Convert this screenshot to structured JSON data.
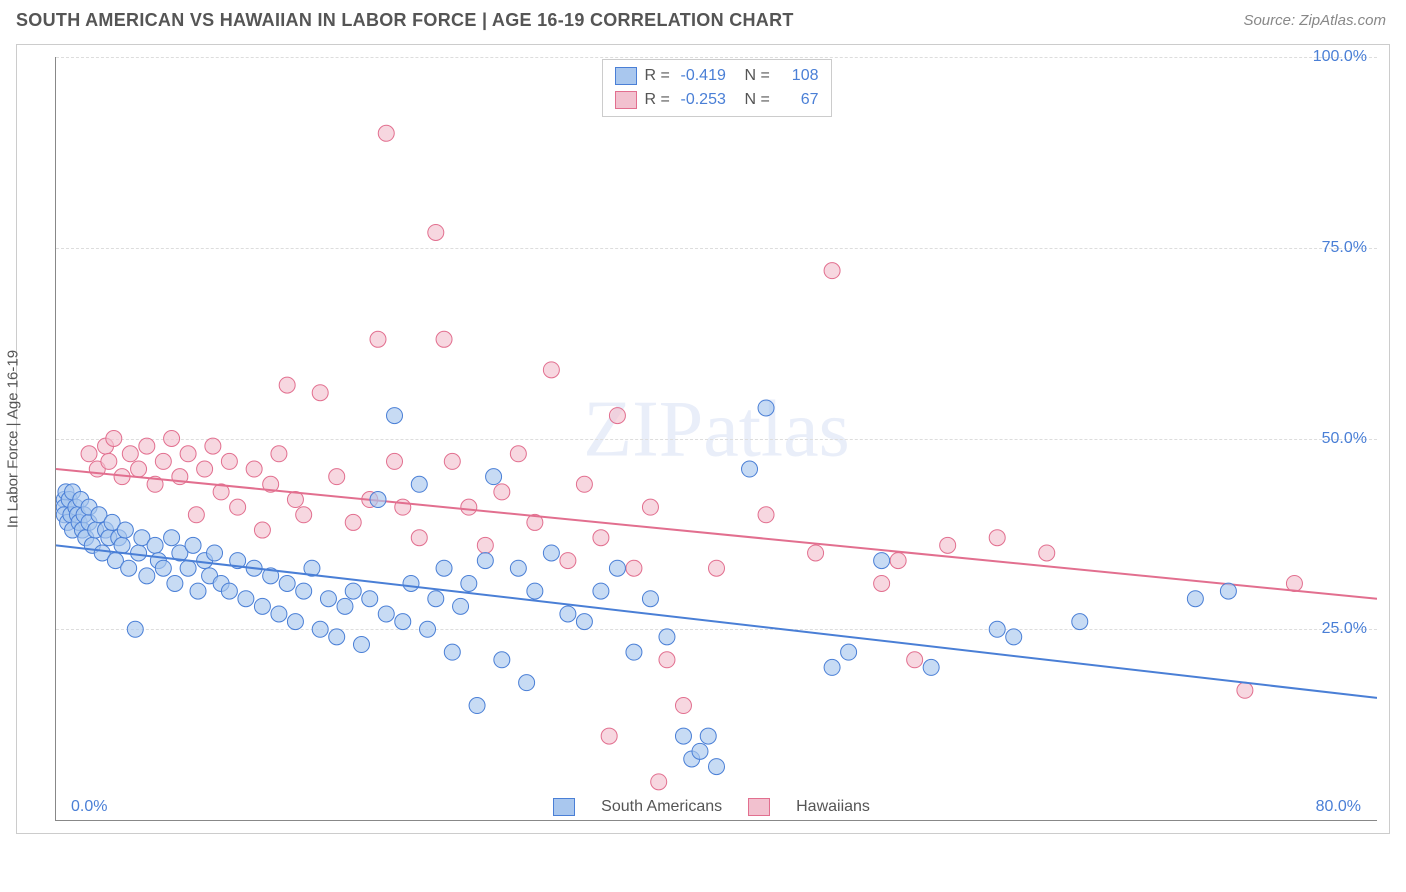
{
  "header": {
    "title": "SOUTH AMERICAN VS HAWAIIAN IN LABOR FORCE | AGE 16-19 CORRELATION CHART",
    "source": "Source: ZipAtlas.com"
  },
  "ylabel": "In Labor Force | Age 16-19",
  "watermark": "ZIPatlas",
  "chart": {
    "type": "scatter",
    "xlim": [
      0,
      80
    ],
    "ylim": [
      0,
      100
    ],
    "ytick_step": 25,
    "y_tick_labels": [
      "25.0%",
      "50.0%",
      "75.0%",
      "100.0%"
    ],
    "x_tick_labels": {
      "start": "0.0%",
      "end": "80.0%"
    },
    "background_color": "#ffffff",
    "grid_color": "#dddddd",
    "marker_radius": 8,
    "marker_opacity": 0.65,
    "line_width": 2,
    "series": [
      {
        "name": "South Americans",
        "fill": "#a9c7ee",
        "stroke": "#4a7fd6",
        "R": "-0.419",
        "N": "108",
        "trend": {
          "x1": 0,
          "y1": 36,
          "x2": 80,
          "y2": 16
        },
        "points": [
          [
            0.5,
            42
          ],
          [
            0.5,
            41
          ],
          [
            0.5,
            40
          ],
          [
            0.6,
            43
          ],
          [
            0.7,
            39
          ],
          [
            0.8,
            42
          ],
          [
            0.9,
            40
          ],
          [
            1,
            43
          ],
          [
            1,
            38
          ],
          [
            1.2,
            41
          ],
          [
            1.3,
            40
          ],
          [
            1.4,
            39
          ],
          [
            1.5,
            42
          ],
          [
            1.6,
            38
          ],
          [
            1.7,
            40
          ],
          [
            1.8,
            37
          ],
          [
            2,
            39
          ],
          [
            2,
            41
          ],
          [
            2.2,
            36
          ],
          [
            2.4,
            38
          ],
          [
            2.6,
            40
          ],
          [
            2.8,
            35
          ],
          [
            3,
            38
          ],
          [
            3.2,
            37
          ],
          [
            3.4,
            39
          ],
          [
            3.6,
            34
          ],
          [
            3.8,
            37
          ],
          [
            4,
            36
          ],
          [
            4.2,
            38
          ],
          [
            4.4,
            33
          ],
          [
            4.8,
            25
          ],
          [
            5,
            35
          ],
          [
            5.2,
            37
          ],
          [
            5.5,
            32
          ],
          [
            6,
            36
          ],
          [
            6.2,
            34
          ],
          [
            6.5,
            33
          ],
          [
            7,
            37
          ],
          [
            7.2,
            31
          ],
          [
            7.5,
            35
          ],
          [
            8,
            33
          ],
          [
            8.3,
            36
          ],
          [
            8.6,
            30
          ],
          [
            9,
            34
          ],
          [
            9.3,
            32
          ],
          [
            9.6,
            35
          ],
          [
            10,
            31
          ],
          [
            10.5,
            30
          ],
          [
            11,
            34
          ],
          [
            11.5,
            29
          ],
          [
            12,
            33
          ],
          [
            12.5,
            28
          ],
          [
            13,
            32
          ],
          [
            13.5,
            27
          ],
          [
            14,
            31
          ],
          [
            14.5,
            26
          ],
          [
            15,
            30
          ],
          [
            15.5,
            33
          ],
          [
            16,
            25
          ],
          [
            16.5,
            29
          ],
          [
            17,
            24
          ],
          [
            17.5,
            28
          ],
          [
            18,
            30
          ],
          [
            18.5,
            23
          ],
          [
            19,
            29
          ],
          [
            19.5,
            42
          ],
          [
            20,
            27
          ],
          [
            20.5,
            53
          ],
          [
            21,
            26
          ],
          [
            21.5,
            31
          ],
          [
            22,
            44
          ],
          [
            22.5,
            25
          ],
          [
            23,
            29
          ],
          [
            23.5,
            33
          ],
          [
            24,
            22
          ],
          [
            24.5,
            28
          ],
          [
            25,
            31
          ],
          [
            25.5,
            15
          ],
          [
            26,
            34
          ],
          [
            26.5,
            45
          ],
          [
            27,
            21
          ],
          [
            28,
            33
          ],
          [
            28.5,
            18
          ],
          [
            29,
            30
          ],
          [
            30,
            35
          ],
          [
            31,
            27
          ],
          [
            32,
            26
          ],
          [
            33,
            30
          ],
          [
            34,
            33
          ],
          [
            35,
            22
          ],
          [
            36,
            29
          ],
          [
            37,
            24
          ],
          [
            38,
            11
          ],
          [
            38.5,
            8
          ],
          [
            39,
            9
          ],
          [
            39.5,
            11
          ],
          [
            40,
            7
          ],
          [
            42,
            46
          ],
          [
            43,
            54
          ],
          [
            47,
            20
          ],
          [
            48,
            22
          ],
          [
            50,
            34
          ],
          [
            53,
            20
          ],
          [
            57,
            25
          ],
          [
            58,
            24
          ],
          [
            62,
            26
          ],
          [
            69,
            29
          ],
          [
            71,
            30
          ]
        ]
      },
      {
        "name": "Hawaiians",
        "fill": "#f2c1cf",
        "stroke": "#e26f8f",
        "R": "-0.253",
        "N": "67",
        "trend": {
          "x1": 0,
          "y1": 46,
          "x2": 80,
          "y2": 29
        },
        "points": [
          [
            2,
            48
          ],
          [
            2.5,
            46
          ],
          [
            3,
            49
          ],
          [
            3.2,
            47
          ],
          [
            3.5,
            50
          ],
          [
            4,
            45
          ],
          [
            4.5,
            48
          ],
          [
            5,
            46
          ],
          [
            5.5,
            49
          ],
          [
            6,
            44
          ],
          [
            6.5,
            47
          ],
          [
            7,
            50
          ],
          [
            7.5,
            45
          ],
          [
            8,
            48
          ],
          [
            8.5,
            40
          ],
          [
            9,
            46
          ],
          [
            9.5,
            49
          ],
          [
            10,
            43
          ],
          [
            10.5,
            47
          ],
          [
            11,
            41
          ],
          [
            12,
            46
          ],
          [
            12.5,
            38
          ],
          [
            13,
            44
          ],
          [
            13.5,
            48
          ],
          [
            14,
            57
          ],
          [
            14.5,
            42
          ],
          [
            15,
            40
          ],
          [
            16,
            56
          ],
          [
            17,
            45
          ],
          [
            18,
            39
          ],
          [
            19,
            42
          ],
          [
            19.5,
            63
          ],
          [
            20,
            90
          ],
          [
            20.5,
            47
          ],
          [
            21,
            41
          ],
          [
            22,
            37
          ],
          [
            23,
            77
          ],
          [
            23.5,
            63
          ],
          [
            24,
            47
          ],
          [
            25,
            41
          ],
          [
            26,
            36
          ],
          [
            27,
            43
          ],
          [
            28,
            48
          ],
          [
            29,
            39
          ],
          [
            30,
            59
          ],
          [
            31,
            34
          ],
          [
            32,
            44
          ],
          [
            33,
            37
          ],
          [
            33.5,
            11
          ],
          [
            34,
            53
          ],
          [
            35,
            33
          ],
          [
            36,
            41
          ],
          [
            36.5,
            5
          ],
          [
            37,
            21
          ],
          [
            38,
            15
          ],
          [
            40,
            33
          ],
          [
            43,
            40
          ],
          [
            46,
            35
          ],
          [
            47,
            72
          ],
          [
            50,
            31
          ],
          [
            51,
            34
          ],
          [
            52,
            21
          ],
          [
            54,
            36
          ],
          [
            57,
            37
          ],
          [
            60,
            35
          ],
          [
            72,
            17
          ],
          [
            75,
            31
          ]
        ]
      }
    ]
  },
  "bottom_legend": {
    "series1": "South Americans",
    "series2": "Hawaiians"
  }
}
